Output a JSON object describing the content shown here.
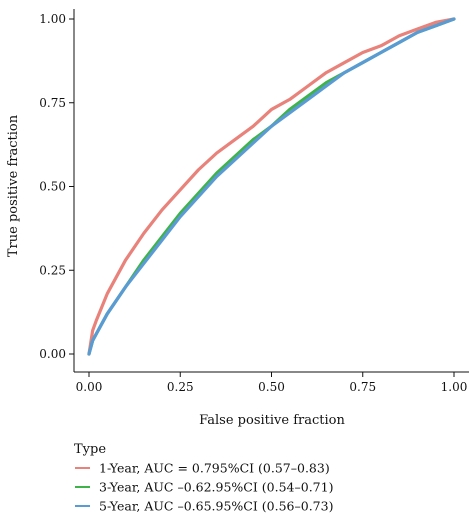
{
  "chart_data": {
    "type": "line",
    "title": "",
    "xlabel": "False positive fraction",
    "ylabel": "True positive fraction",
    "xlim": [
      0,
      1
    ],
    "ylim": [
      0,
      1
    ],
    "x_ticks": [
      "0.00",
      "0.25",
      "0.50",
      "0.75",
      "1.00"
    ],
    "y_ticks": [
      "0.00",
      "0.25",
      "0.50",
      "0.75",
      "1.00"
    ],
    "grid": false,
    "legend": {
      "title": "Type",
      "position": "bottom-left"
    },
    "series": [
      {
        "name": "1-Year, AUC = 0.795%CI (0.57–0.83)",
        "color": "#e8827a",
        "points": [
          [
            0.0,
            0.0
          ],
          [
            0.01,
            0.07
          ],
          [
            0.02,
            0.1
          ],
          [
            0.05,
            0.18
          ],
          [
            0.1,
            0.28
          ],
          [
            0.15,
            0.36
          ],
          [
            0.2,
            0.43
          ],
          [
            0.25,
            0.49
          ],
          [
            0.3,
            0.55
          ],
          [
            0.35,
            0.6
          ],
          [
            0.4,
            0.64
          ],
          [
            0.45,
            0.68
          ],
          [
            0.5,
            0.73
          ],
          [
            0.55,
            0.76
          ],
          [
            0.6,
            0.8
          ],
          [
            0.65,
            0.84
          ],
          [
            0.7,
            0.87
          ],
          [
            0.75,
            0.9
          ],
          [
            0.8,
            0.92
          ],
          [
            0.85,
            0.95
          ],
          [
            0.9,
            0.97
          ],
          [
            0.95,
            0.99
          ],
          [
            1.0,
            1.0
          ]
        ]
      },
      {
        "name": "3-Year, AUC –0.62.95%CI (0.54–0.71)",
        "color": "#3fb34a",
        "points": [
          [
            0.0,
            0.0
          ],
          [
            0.01,
            0.04
          ],
          [
            0.02,
            0.06
          ],
          [
            0.05,
            0.12
          ],
          [
            0.1,
            0.2
          ],
          [
            0.15,
            0.28
          ],
          [
            0.2,
            0.35
          ],
          [
            0.25,
            0.42
          ],
          [
            0.3,
            0.48
          ],
          [
            0.35,
            0.54
          ],
          [
            0.4,
            0.59
          ],
          [
            0.45,
            0.64
          ],
          [
            0.5,
            0.68
          ],
          [
            0.55,
            0.73
          ],
          [
            0.6,
            0.77
          ],
          [
            0.65,
            0.81
          ],
          [
            0.7,
            0.84
          ],
          [
            0.75,
            0.87
          ],
          [
            0.8,
            0.9
          ],
          [
            0.85,
            0.93
          ],
          [
            0.9,
            0.96
          ],
          [
            0.95,
            0.98
          ],
          [
            1.0,
            1.0
          ]
        ]
      },
      {
        "name": "5-Year, AUC –0.65.95%CI (0.56–0.73)",
        "color": "#5b9bd5",
        "points": [
          [
            0.0,
            0.0
          ],
          [
            0.01,
            0.04
          ],
          [
            0.02,
            0.06
          ],
          [
            0.05,
            0.12
          ],
          [
            0.1,
            0.2
          ],
          [
            0.15,
            0.27
          ],
          [
            0.2,
            0.34
          ],
          [
            0.25,
            0.41
          ],
          [
            0.3,
            0.47
          ],
          [
            0.35,
            0.53
          ],
          [
            0.4,
            0.58
          ],
          [
            0.45,
            0.63
          ],
          [
            0.5,
            0.68
          ],
          [
            0.55,
            0.72
          ],
          [
            0.6,
            0.76
          ],
          [
            0.65,
            0.8
          ],
          [
            0.7,
            0.84
          ],
          [
            0.75,
            0.87
          ],
          [
            0.8,
            0.9
          ],
          [
            0.85,
            0.93
          ],
          [
            0.9,
            0.96
          ],
          [
            0.95,
            0.98
          ],
          [
            1.0,
            1.0
          ]
        ]
      }
    ]
  }
}
